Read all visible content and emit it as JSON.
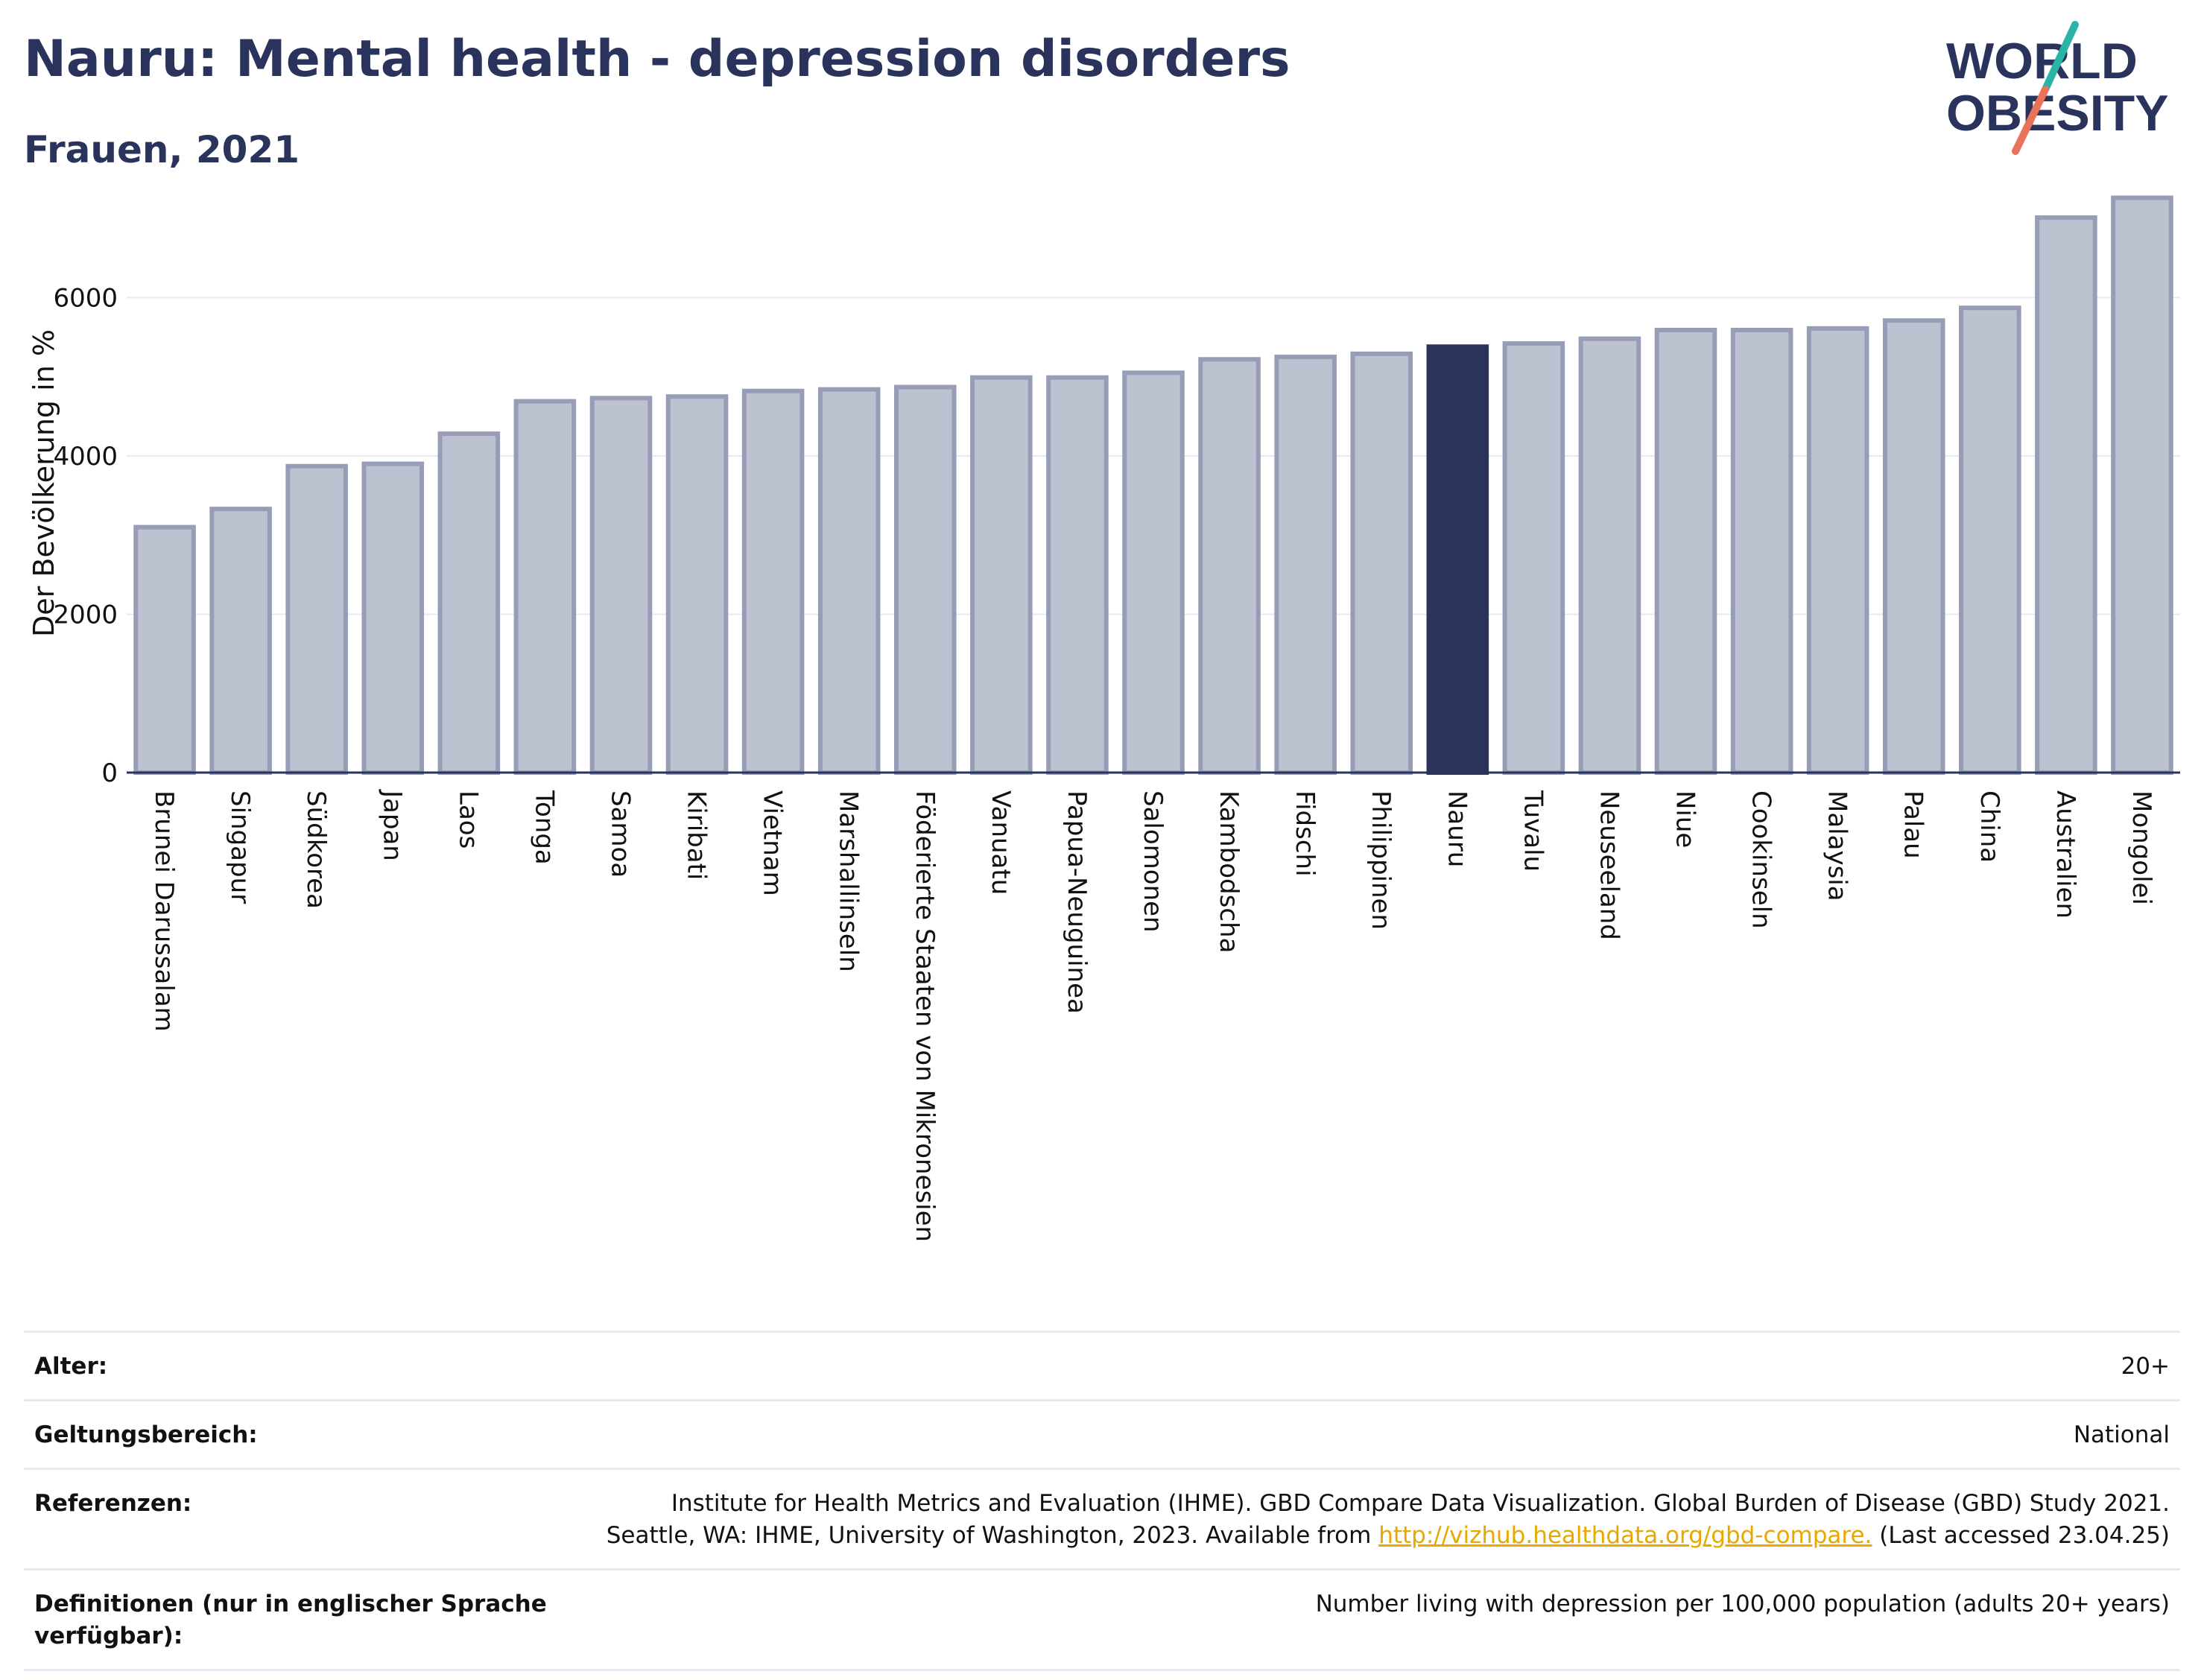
{
  "title": "Nauru: Mental health - depression disorders",
  "subtitle": "Frauen, 2021",
  "logo": {
    "line1": "WORLD",
    "line2": "OBESITY",
    "colors": {
      "text": "#2a335c",
      "slash_top": "#2bb3a6",
      "slash_bottom": "#e8735a"
    }
  },
  "colors": {
    "bar": "#bdc2d0",
    "bar_edge": "#979db6",
    "highlight": "#2a335c",
    "grid": "#e6e9f0",
    "axis": "#2a335c"
  },
  "chart_data": {
    "type": "bar",
    "title": "",
    "xlabel": "",
    "ylabel": "Der Bevölkerung in %",
    "ylim": [
      0,
      7500
    ],
    "yticks": [
      0,
      2000,
      4000,
      6000
    ],
    "grid": true,
    "highlight": "Nauru",
    "categories": [
      "Brunei Darussalam",
      "Singapur",
      "Südkorea",
      "Japan",
      "Laos",
      "Tonga",
      "Samoa",
      "Kiribati",
      "Vietnam",
      "Marshallinseln",
      "Föderierte Staaten von Mikronesien",
      "Vanuatu",
      "Papua-Neuguinea",
      "Salomonen",
      "Kambodscha",
      "Fidschi",
      "Philippinen",
      "Nauru",
      "Tuvalu",
      "Neuseeland",
      "Niue",
      "Cookinseln",
      "Malaysia",
      "Palau",
      "China",
      "Australien",
      "Mongolei"
    ],
    "values": [
      3100,
      3330,
      3870,
      3900,
      4280,
      4690,
      4730,
      4750,
      4820,
      4840,
      4870,
      4990,
      4990,
      5050,
      5220,
      5250,
      5290,
      5380,
      5420,
      5480,
      5590,
      5590,
      5610,
      5710,
      5870,
      7010,
      7260
    ]
  },
  "meta": [
    {
      "key": "Alter:",
      "value": "20+"
    },
    {
      "key": "Geltungsbereich:",
      "value": "National"
    },
    {
      "key": "Referenzen:",
      "value_line1": "Institute for Health Metrics and Evaluation (IHME). GBD Compare Data Visualization. Global Burden of Disease (GBD) Study 2021.",
      "value_line2_pre": "Seattle, WA: IHME, University of Washington, 2023. Available from ",
      "link": "http://vizhub.healthdata.org/gbd-compare.",
      "value_line2_post": " (Last accessed 23.04.25)"
    },
    {
      "key": "Definitionen (nur in englischer Sprache verfügbar):",
      "value": "Number living with depression per 100,000 population (adults 20+ years)"
    }
  ]
}
